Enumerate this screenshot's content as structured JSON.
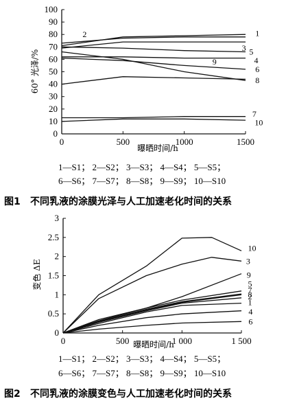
{
  "chart_data": [
    {
      "type": "line",
      "figure_label": "图1",
      "title": "不同乳液的涂膜光泽与人工加速老化时间的关系",
      "xlabel": "曝晒时间/h",
      "ylabel": "60° 光泽/%",
      "xlim": [
        0,
        1500
      ],
      "ylim": [
        0,
        100
      ],
      "x_ticks": [
        "0",
        "500",
        "1000",
        "1500"
      ],
      "y_ticks": [
        "0",
        "10",
        "20",
        "30",
        "40",
        "50",
        "60",
        "70",
        "80",
        "90",
        "100"
      ],
      "legend_lines": [
        "1—S1； 2—S2； 3—S3； 4—S4； 5—S5；",
        "6—S6； 7—S7； 8—S8； 9—S9； 10—S10"
      ],
      "series": [
        {
          "name": "1",
          "x": [
            0,
            500,
            1000,
            1500
          ],
          "y": [
            71,
            78,
            79,
            80
          ]
        },
        {
          "name": "2",
          "x": [
            0,
            500,
            1000,
            1500
          ],
          "y": [
            73,
            77,
            78,
            78
          ]
        },
        {
          "name": "3",
          "x": [
            0,
            500,
            1000,
            1500
          ],
          "y": [
            69,
            74,
            74,
            74
          ]
        },
        {
          "name": "4",
          "x": [
            0,
            500,
            1000,
            1500
          ],
          "y": [
            62,
            62,
            61,
            61
          ]
        },
        {
          "name": "5",
          "x": [
            0,
            500,
            1000,
            1500
          ],
          "y": [
            70,
            69,
            67,
            66
          ]
        },
        {
          "name": "6",
          "x": [
            0,
            500,
            1000,
            1500
          ],
          "y": [
            61,
            59,
            55,
            52
          ]
        },
        {
          "name": "7",
          "x": [
            0,
            500,
            1000,
            1500
          ],
          "y": [
            13,
            13,
            14,
            14
          ]
        },
        {
          "name": "8",
          "x": [
            0,
            500,
            1000,
            1500
          ],
          "y": [
            40,
            46,
            45,
            44
          ]
        },
        {
          "name": "9",
          "x": [
            0,
            500,
            1000,
            1500
          ],
          "y": [
            66,
            60,
            50,
            43
          ]
        },
        {
          "name": "10",
          "x": [
            0,
            500,
            1000,
            1500
          ],
          "y": [
            10,
            12,
            12,
            11
          ]
        }
      ],
      "label_positions": {
        "1": [
          1580,
          81
        ],
        "2": [
          170,
          80
        ],
        "3": [
          1470,
          69
        ],
        "4": [
          1570,
          59
        ],
        "5": [
          1530,
          66
        ],
        "6": [
          1580,
          52
        ],
        "7": [
          1555,
          16
        ],
        "8": [
          1580,
          43
        ],
        "9": [
          1230,
          58
        ],
        "10": [
          1575,
          9
        ]
      }
    },
    {
      "type": "line",
      "figure_label": "图2",
      "title": "不同乳液的涂膜变色与人工加速老化时间的关系",
      "xlabel": "曝晒时间/h",
      "ylabel": "变色 ΔE",
      "xlim": [
        0,
        1500
      ],
      "ylim": [
        0,
        3
      ],
      "x_ticks": [
        "0",
        "500",
        "1 000",
        "1 500"
      ],
      "y_ticks": [
        "0",
        "0.5",
        "1",
        "1.5",
        "2",
        "2.5",
        "3"
      ],
      "legend_lines": [
        "1—S1； 2—S2； 3—S3； 4—S4； 5—S5；",
        "6—S6； 7—S7； 8—S8； 9—S9； 10—S10"
      ],
      "series": [
        {
          "name": "1",
          "x": [
            0,
            300,
            700,
            1000,
            1500
          ],
          "y": [
            0,
            0.25,
            0.55,
            0.72,
            0.78
          ]
        },
        {
          "name": "2",
          "x": [
            0,
            300,
            700,
            1000,
            1500
          ],
          "y": [
            0,
            0.28,
            0.58,
            0.78,
            0.92
          ]
        },
        {
          "name": "3",
          "x": [
            0,
            300,
            700,
            1000,
            1250,
            1500
          ],
          "y": [
            0,
            0.9,
            1.5,
            1.8,
            1.98,
            1.88
          ]
        },
        {
          "name": "4",
          "x": [
            0,
            300,
            700,
            1000,
            1500
          ],
          "y": [
            0,
            0.2,
            0.4,
            0.5,
            0.58
          ]
        },
        {
          "name": "5",
          "x": [
            0,
            300,
            700,
            1000,
            1500
          ],
          "y": [
            0,
            0.3,
            0.62,
            0.82,
            1.02
          ]
        },
        {
          "name": "6",
          "x": [
            0,
            300,
            700,
            1000,
            1500
          ],
          "y": [
            0,
            0.1,
            0.2,
            0.26,
            0.3
          ]
        },
        {
          "name": "7",
          "x": [
            0,
            300,
            700,
            1000,
            1500
          ],
          "y": [
            0,
            0.32,
            0.65,
            0.86,
            1.1
          ]
        },
        {
          "name": "8",
          "x": [
            0,
            300,
            700,
            1000,
            1500
          ],
          "y": [
            0,
            0.3,
            0.6,
            0.8,
            1.0
          ]
        },
        {
          "name": "9",
          "x": [
            0,
            300,
            700,
            1000,
            1500
          ],
          "y": [
            0,
            0.35,
            0.65,
            0.95,
            1.55
          ]
        },
        {
          "name": "10",
          "x": [
            0,
            300,
            700,
            1000,
            1250,
            1500
          ],
          "y": [
            0,
            1.0,
            1.75,
            2.48,
            2.5,
            2.15
          ]
        }
      ],
      "label_positions": {
        "1": [
          1555,
          0.8
        ],
        "2": [
          1555,
          0.95
        ],
        "3": [
          1540,
          1.88
        ],
        "4": [
          1560,
          0.56
        ],
        "5": [
          1555,
          1.28
        ],
        "6": [
          1560,
          0.3
        ],
        "7": [
          1555,
          1.12
        ],
        "8": [
          1555,
          1.01
        ],
        "9": [
          1545,
          1.52
        ],
        "10": [
          1555,
          2.22
        ]
      }
    }
  ]
}
